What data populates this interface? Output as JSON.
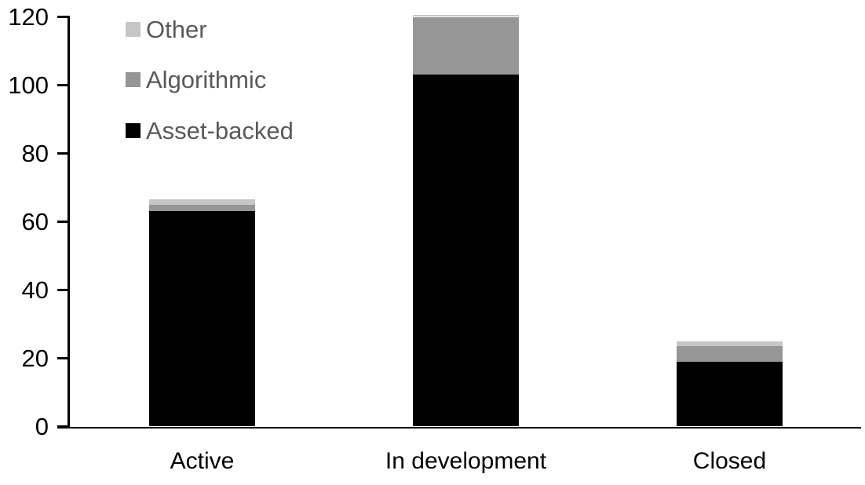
{
  "chart_data": {
    "type": "bar",
    "stacked": true,
    "title": "",
    "xlabel": "",
    "ylabel": "",
    "grid": false,
    "categories": [
      "Active",
      "In development",
      "Closed"
    ],
    "series": [
      {
        "name": "Asset-backed",
        "color": "#000000",
        "values": [
          63,
          103,
          19
        ]
      },
      {
        "name": "Algorithmic",
        "color": "#969696",
        "values": [
          2,
          17,
          4.5
        ]
      },
      {
        "name": "Other",
        "color": "#C6C6C6",
        "values": [
          1.5,
          0.5,
          1.5
        ]
      }
    ],
    "totals": [
      66.5,
      120.5,
      25
    ],
    "y_axis": {
      "min": 0,
      "max": 120,
      "tick_interval": 20,
      "tick_labels": [
        "0",
        "20",
        "40",
        "60",
        "80",
        "100",
        "120"
      ]
    },
    "legend": {
      "position": "top-left",
      "entries": [
        "Other",
        "Algorithmic",
        "Asset-backed"
      ]
    },
    "colors": {
      "axis": "#000000",
      "tick_label_text": "#000000",
      "category_label_text": "#000000",
      "legend_text": "#595959",
      "background": "#ffffff"
    }
  }
}
